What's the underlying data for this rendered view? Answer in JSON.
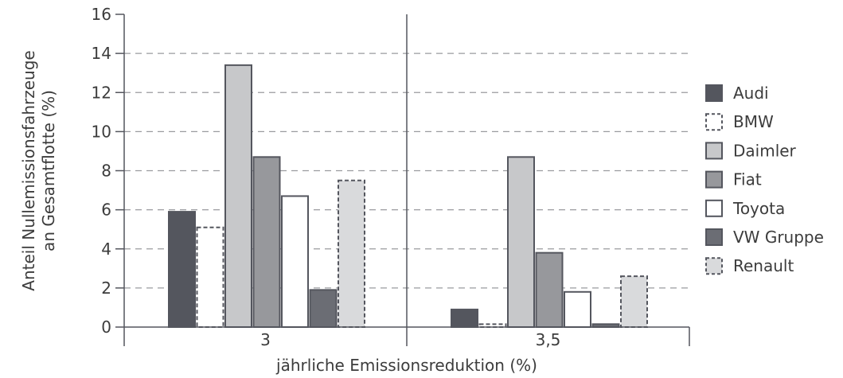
{
  "chart_data": {
    "type": "bar",
    "xlabel": "jährliche Emissionsreduktion (%)",
    "ylabel_lines": [
      "Anteil Nullemissionsfahrzeuge",
      "an Gesamtflotte (%)"
    ],
    "ylim": [
      0,
      16
    ],
    "yticks": [
      "0",
      "2",
      "4",
      "6",
      "8",
      "10",
      "12",
      "14",
      "16"
    ],
    "grid": "horizontal dashed",
    "legend_position": "right",
    "categories": [
      "3",
      "3,5"
    ],
    "series": [
      {
        "name": "Audi",
        "values": [
          5.9,
          0.9
        ],
        "fill": "#54565e",
        "stroke": "#54565e",
        "dashed": false
      },
      {
        "name": "BMW",
        "values": [
          5.1,
          0.15
        ],
        "fill": "#ffffff",
        "stroke": "#54565e",
        "dashed": true
      },
      {
        "name": "Daimler",
        "values": [
          13.4,
          8.7
        ],
        "fill": "#c7c8ca",
        "stroke": "#54565e",
        "dashed": false
      },
      {
        "name": "Fiat",
        "values": [
          8.7,
          3.8
        ],
        "fill": "#97989c",
        "stroke": "#54565e",
        "dashed": false
      },
      {
        "name": "Toyota",
        "values": [
          6.7,
          1.8
        ],
        "fill": "#ffffff",
        "stroke": "#54565e",
        "dashed": false
      },
      {
        "name": "VW Gruppe",
        "values": [
          1.9,
          0.15
        ],
        "fill": "#6b6d74",
        "stroke": "#54565e",
        "dashed": false
      },
      {
        "name": "Renault",
        "values": [
          7.5,
          2.6
        ],
        "fill": "#d9dadc",
        "stroke": "#54565e",
        "dashed": true
      }
    ]
  }
}
